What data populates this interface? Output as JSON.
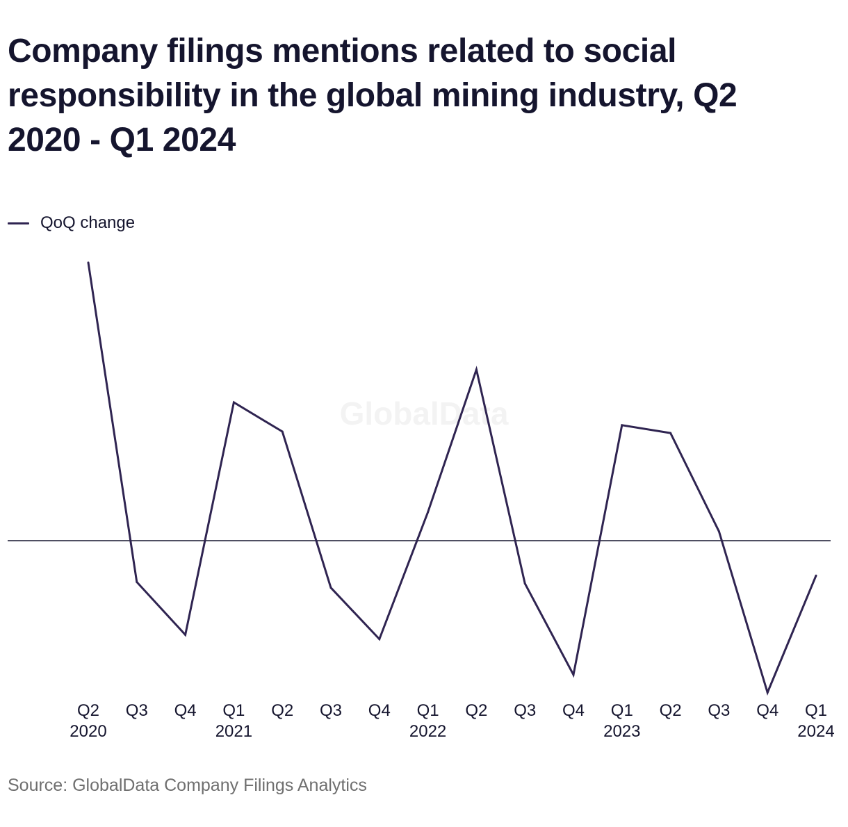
{
  "chart_data": {
    "type": "line",
    "title": "Company filings mentions related to social responsibility in the global mining industry, Q2 2020 - Q1 2024",
    "watermark": "GlobalData",
    "source": "Source: GlobalData Company Filings Analytics",
    "xlabel": "",
    "ylabel": "",
    "y_axis_labels_shown": false,
    "baseline": 0,
    "ylim": [
      -22,
      42
    ],
    "grid": false,
    "legend_placement": "top-left",
    "categories": [
      {
        "quarter": "Q2",
        "year": "2020"
      },
      {
        "quarter": "Q3",
        "year": ""
      },
      {
        "quarter": "Q4",
        "year": ""
      },
      {
        "quarter": "Q1",
        "year": "2021"
      },
      {
        "quarter": "Q2",
        "year": ""
      },
      {
        "quarter": "Q3",
        "year": ""
      },
      {
        "quarter": "Q4",
        "year": ""
      },
      {
        "quarter": "Q1",
        "year": "2022"
      },
      {
        "quarter": "Q2",
        "year": ""
      },
      {
        "quarter": "Q3",
        "year": ""
      },
      {
        "quarter": "Q4",
        "year": ""
      },
      {
        "quarter": "Q1",
        "year": "2023"
      },
      {
        "quarter": "Q2",
        "year": ""
      },
      {
        "quarter": "Q3",
        "year": ""
      },
      {
        "quarter": "Q4",
        "year": ""
      },
      {
        "quarter": "Q1",
        "year": "2024"
      }
    ],
    "series": [
      {
        "name": "QoQ change",
        "color": "#2f2451",
        "values": [
          39,
          -5.8,
          -13.2,
          19.4,
          15.3,
          -6.6,
          -13.8,
          4,
          24,
          -6,
          -18.8,
          16.2,
          15.1,
          1.3,
          -21.3,
          -4.9
        ]
      }
    ]
  }
}
